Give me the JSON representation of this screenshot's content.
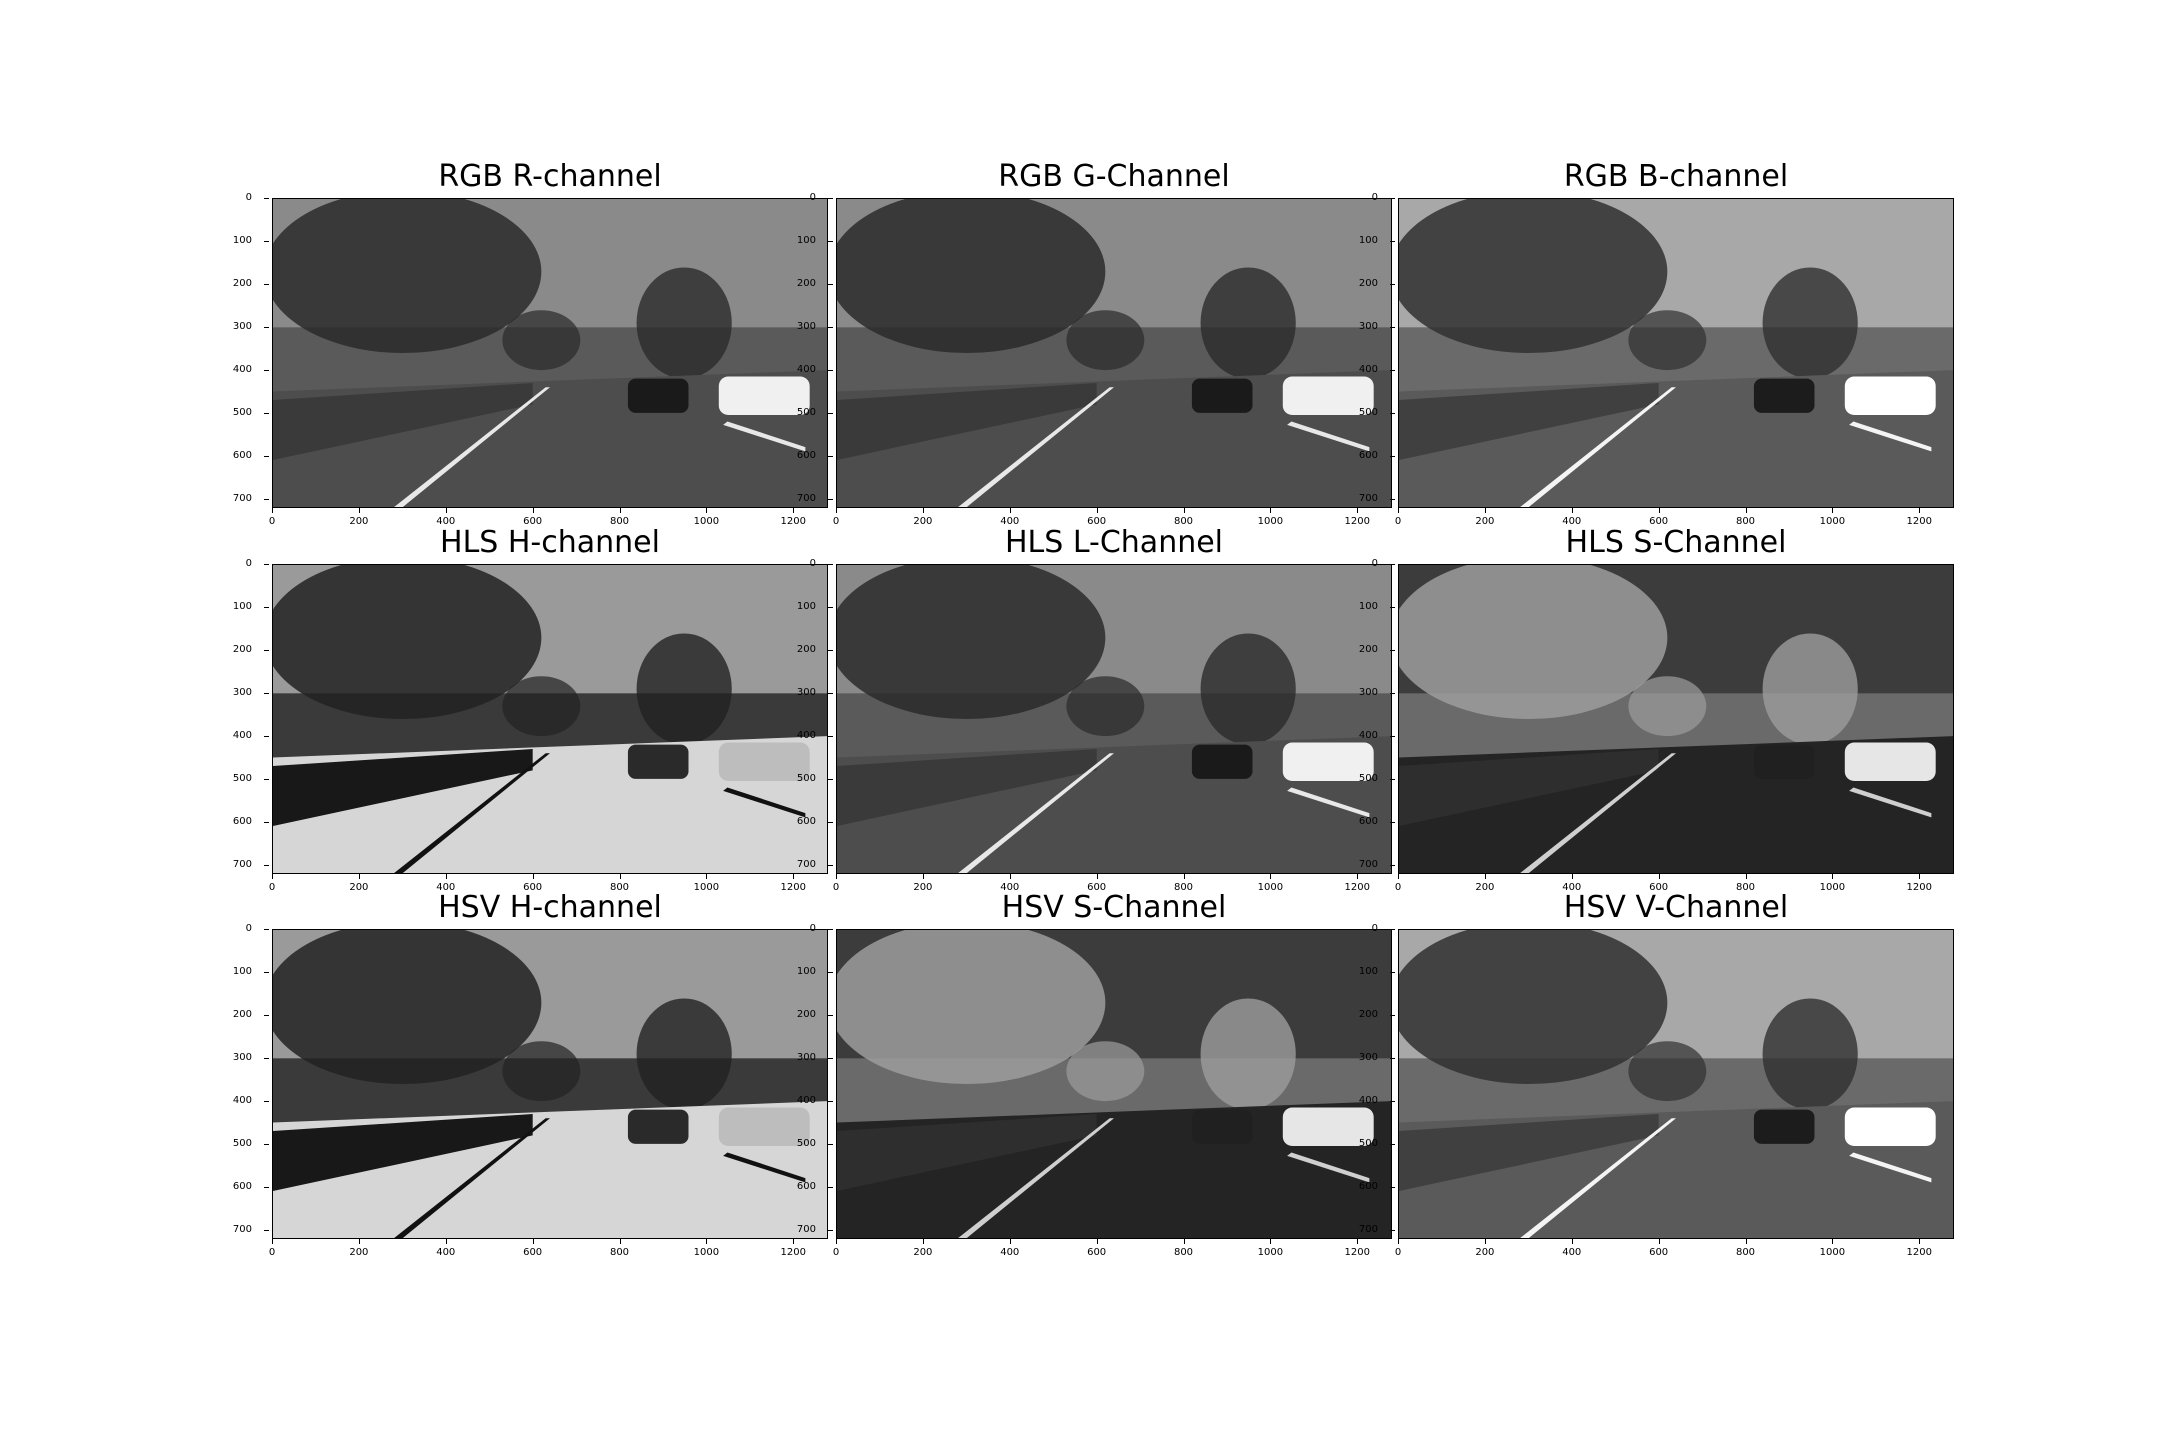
{
  "figure": {
    "panels": [
      {
        "id": "rgb-r",
        "title": "RGB R-channel",
        "style": "gray"
      },
      {
        "id": "rgb-g",
        "title": "RGB G-Channel",
        "style": "gray"
      },
      {
        "id": "rgb-b",
        "title": "RGB B-channel",
        "style": "gray-light"
      },
      {
        "id": "hls-h",
        "title": "HLS H-channel",
        "style": "hue"
      },
      {
        "id": "hls-l",
        "title": "HLS L-Channel",
        "style": "gray"
      },
      {
        "id": "hls-s",
        "title": "HLS S-Channel",
        "style": "saturation"
      },
      {
        "id": "hsv-h",
        "title": "HSV H-channel",
        "style": "hue"
      },
      {
        "id": "hsv-s",
        "title": "HSV S-Channel",
        "style": "saturation"
      },
      {
        "id": "hsv-v",
        "title": "HSV V-Channel",
        "style": "gray-light"
      }
    ],
    "x_ticks": [
      "0",
      "200",
      "400",
      "600",
      "800",
      "1000",
      "1200"
    ],
    "y_ticks": [
      "0",
      "100",
      "200",
      "300",
      "400",
      "500",
      "600",
      "700"
    ],
    "x_range": [
      0,
      1280
    ],
    "y_range": [
      0,
      720
    ]
  }
}
